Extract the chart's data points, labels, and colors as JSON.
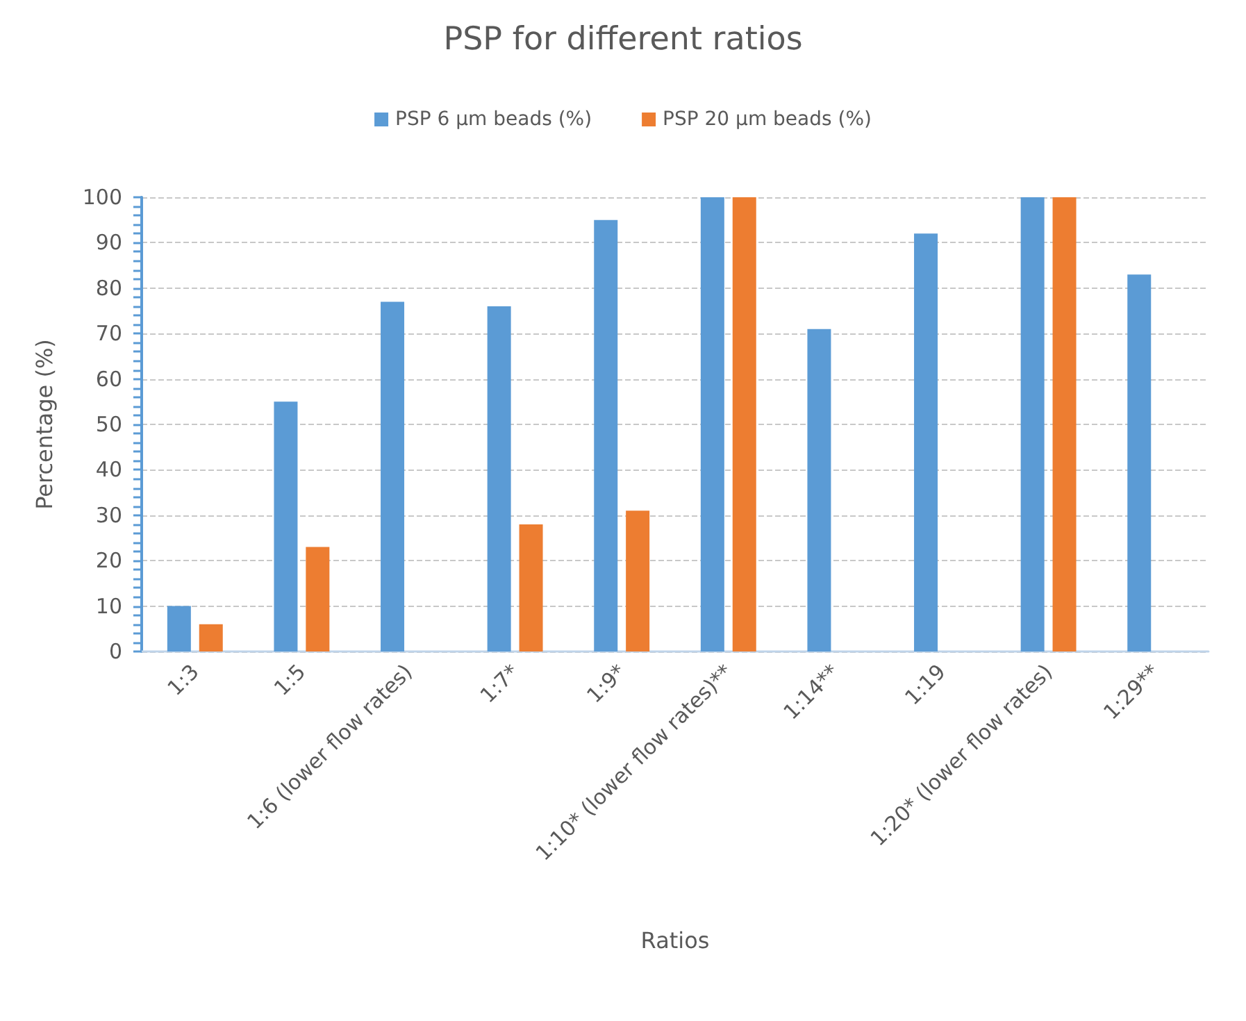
{
  "chart_data": {
    "type": "bar",
    "title": "PSP for different ratios",
    "xlabel": "Ratios",
    "ylabel": "Percentage (%)",
    "categories": [
      "1:3",
      "1:5",
      "1:6 (lower flow rates)",
      "1:7*",
      "1:9*",
      "1:10* (lower flow rates)**",
      "1:14**",
      "1:19",
      "1:20* (lower flow rates)",
      "1:29**"
    ],
    "series": [
      {
        "name": "PSP 6 µm beads (%)",
        "color": "#5b9bd5",
        "values": [
          10,
          55,
          77,
          76,
          95,
          100,
          71,
          92,
          100,
          83
        ]
      },
      {
        "name": "PSP 20 µm beads (%)",
        "color": "#ed7d31",
        "values": [
          6,
          23,
          null,
          28,
          31,
          100,
          null,
          null,
          100,
          null
        ]
      }
    ],
    "ylim": [
      0,
      100
    ],
    "yticks": [
      0,
      {
        "value": 2,
        "label": null
      },
      {
        "value": 4,
        "label": null
      },
      {
        "value": 6,
        "label": null
      },
      {
        "value": 8,
        "label": null
      },
      10,
      {
        "value": 12,
        "label": null
      },
      {
        "value": 14,
        "label": null
      },
      {
        "value": 16,
        "label": null
      },
      {
        "value": 18,
        "label": null
      },
      20,
      {
        "value": 22,
        "label": null
      },
      {
        "value": 24,
        "label": null
      },
      {
        "value": 26,
        "label": null
      },
      {
        "value": 28,
        "label": null
      },
      30,
      {
        "value": 32,
        "label": null
      },
      {
        "value": 34,
        "label": null
      },
      {
        "value": 36,
        "label": null
      },
      {
        "value": 38,
        "label": null
      },
      40,
      {
        "value": 42,
        "label": null
      },
      {
        "value": 44,
        "label": null
      },
      {
        "value": 46,
        "label": null
      },
      {
        "value": 48,
        "label": null
      },
      50,
      {
        "value": 52,
        "label": null
      },
      {
        "value": 54,
        "label": null
      },
      {
        "value": 56,
        "label": null
      },
      {
        "value": 58,
        "label": null
      },
      60,
      {
        "value": 62,
        "label": null
      },
      {
        "value": 64,
        "label": null
      },
      {
        "value": 66,
        "label": null
      },
      {
        "value": 68,
        "label": null
      },
      70,
      {
        "value": 72,
        "label": null
      },
      {
        "value": 74,
        "label": null
      },
      {
        "value": 76,
        "label": null
      },
      {
        "value": 78,
        "label": null
      },
      80,
      {
        "value": 82,
        "label": null
      },
      {
        "value": 84,
        "label": null
      },
      {
        "value": 86,
        "label": null
      },
      {
        "value": 88,
        "label": null
      },
      90,
      {
        "value": 92,
        "label": null
      },
      {
        "value": 94,
        "label": null
      },
      {
        "value": 96,
        "label": null
      },
      {
        "value": 98,
        "label": null
      },
      100
    ],
    "grid": "y",
    "legend": "top"
  }
}
